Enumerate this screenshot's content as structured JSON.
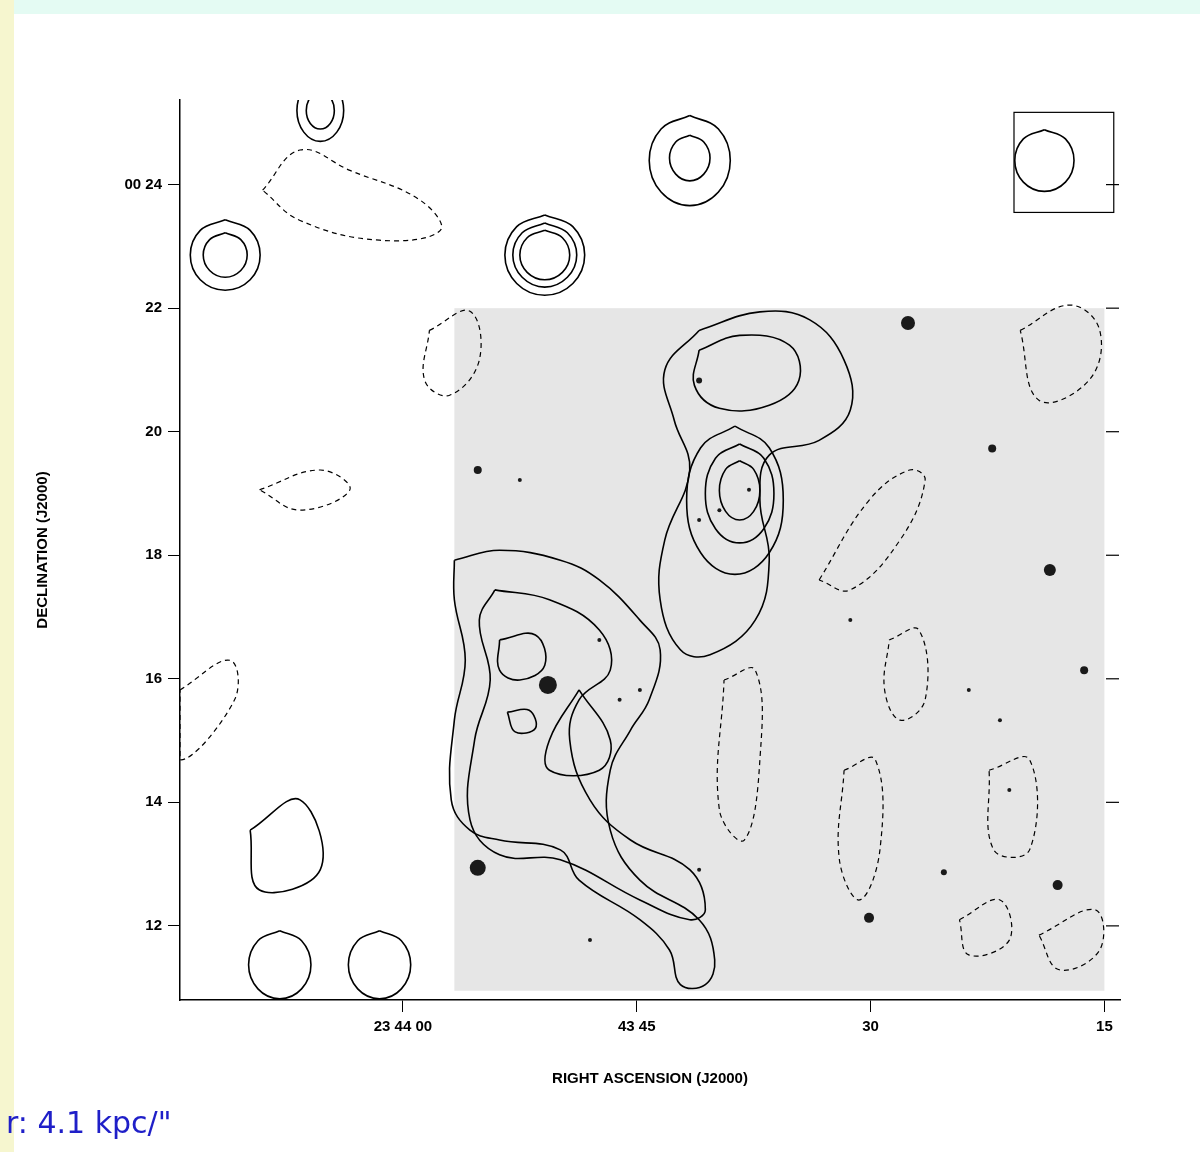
{
  "chart_data": {
    "type": "contour",
    "x_label": "RIGHT ASCENSION (J2000)",
    "y_label": "DECLINATION (J2000)",
    "annotation": "r: 4.1 kpc/\"",
    "xlim": [
      74.3,
      14.0
    ],
    "ylim": [
      10.8,
      25.37
    ],
    "xticks": [
      {
        "value": 60,
        "label": "23 44 00"
      },
      {
        "value": 45,
        "label": "43 45"
      },
      30,
      15
    ],
    "yticks": [
      {
        "value": 24,
        "label": "00 24"
      },
      22,
      20,
      18,
      16,
      14,
      12
    ],
    "grid": false,
    "color": "#000000",
    "optical_image": {
      "x": [
        56.7,
        15.0
      ],
      "y": [
        22.0,
        10.95
      ],
      "color": "#e6e6e6"
    },
    "beam_box": {
      "x": [
        20.8,
        14.4
      ],
      "y": [
        25.17,
        23.55
      ]
    },
    "stars": {
      "x": [
        50.7,
        55.2,
        27.6,
        18.5,
        30.1,
        18.0,
        55.2,
        22.2,
        16.3,
        41.0,
        25.3,
        47.4,
        46.1,
        37.8,
        39.7,
        41.0,
        44.8,
        23.7,
        21.7,
        48.0,
        52.5,
        41.0,
        31.3,
        21.1
      ],
      "y": [
        15.9,
        12.94,
        21.76,
        17.76,
        12.13,
        12.66,
        19.38,
        19.73,
        16.14,
        20.83,
        12.87,
        16.63,
        15.66,
        19.06,
        18.73,
        18.57,
        15.82,
        15.82,
        15.33,
        11.77,
        19.22,
        12.91,
        16.95,
        14.2
      ],
      "size": [
        9,
        8,
        7,
        6,
        5,
        5,
        4,
        4,
        4,
        3,
        3,
        2,
        2,
        2,
        2,
        2,
        2,
        2,
        2,
        2,
        2,
        2,
        2,
        2
      ]
    },
    "contours": [
      {
        "line_style": "solid",
        "x": [
          41.0,
          37.1,
          33.9,
          31.7,
          31.3,
          33.3,
          36.5,
          37.1,
          36.5,
          37.4,
          40.3,
          42.2,
          43.5,
          43.2,
          41.6,
          42.6,
          43.2
        ],
        "y": [
          21.64,
          21.94,
          21.81,
          21.16,
          20.35,
          19.86,
          19.62,
          18.89,
          17.92,
          16.95,
          16.39,
          16.47,
          17.28,
          18.25,
          19.38,
          20.19,
          21.0
        ]
      },
      {
        "line_style": "solid",
        "x": [
          41.0,
          38.4,
          35.2,
          34.6,
          36.5,
          39.7,
          41.3
        ],
        "y": [
          21.32,
          21.56,
          21.4,
          20.83,
          20.43,
          20.38,
          20.75
        ]
      },
      {
        "line_style": "solid",
        "x": [
          38.7,
          36.5,
          35.6,
          36.5,
          38.7,
          40.9,
          41.8,
          40.9
        ],
        "y": [
          20.09,
          19.74,
          18.89,
          18.04,
          17.69,
          18.04,
          18.89,
          19.74
        ]
      },
      {
        "line_style": "solid",
        "x": [
          38.4,
          36.85,
          36.2,
          36.85,
          38.4,
          39.95,
          40.6,
          39.95
        ],
        "y": [
          19.8,
          19.57,
          19.0,
          18.43,
          18.2,
          18.43,
          19.0,
          19.57
        ]
      },
      {
        "line_style": "solid",
        "x": [
          38.4,
          37.5,
          37.1,
          37.5,
          38.4,
          39.3,
          39.7,
          39.3
        ],
        "y": [
          19.53,
          19.39,
          19.05,
          18.71,
          18.57,
          18.71,
          19.05,
          19.39
        ]
      },
      {
        "line_style": "solid",
        "x": [
          56.7,
          53.8,
          49.9,
          47.4,
          44.8,
          43.5,
          44.2,
          45.4,
          46.7,
          46.7,
          44.8,
          41.0,
          40.0,
          40.6,
          42.2,
          42.9,
          44.8,
          48.7,
          49.9,
          53.8,
          55.7,
          56.9,
          56.7,
          56.0,
          56.7
        ],
        "y": [
          17.92,
          18.08,
          17.92,
          17.6,
          16.95,
          16.47,
          15.66,
          15.17,
          14.52,
          13.55,
          12.74,
          12.1,
          11.45,
          11.05,
          11.05,
          11.61,
          12.1,
          12.74,
          13.23,
          13.39,
          13.55,
          14.04,
          15.33,
          16.3,
          17.28
        ]
      },
      {
        "line_style": "solid",
        "x": [
          54.1,
          50.6,
          47.4,
          46.7,
          48.7,
          49.3,
          48.0,
          45.4,
          41.6,
          40.6,
          41.6,
          44.8,
          49.9,
          53.8,
          55.7,
          55.4,
          54.4,
          55.1
        ],
        "y": [
          17.44,
          17.28,
          16.79,
          16.14,
          15.66,
          15.01,
          14.04,
          13.39,
          12.91,
          12.26,
          12.1,
          12.42,
          13.07,
          13.15,
          13.72,
          15.01,
          15.98,
          16.95
        ]
      },
      {
        "line_style": "solid",
        "x": [
          53.8,
          51.5,
          50.9,
          52.5,
          53.8
        ],
        "y": [
          16.63,
          16.71,
          16.22,
          15.98,
          16.14
        ]
      },
      {
        "line_style": "solid",
        "x": [
          53.3,
          51.9,
          51.5,
          52.8
        ],
        "y": [
          15.46,
          15.49,
          15.2,
          15.14
        ]
      },
      {
        "line_style": "solid",
        "x": [
          48.7,
          46.7,
          47.4,
          50.6,
          50.6
        ],
        "y": [
          15.82,
          15.01,
          14.52,
          14.52,
          15.01
        ]
      },
      {
        "line_style": "solid",
        "x": [
          71.4,
          69.8,
          69.16,
          69.8,
          71.4,
          73.0,
          73.64,
          73.0
        ],
        "y": [
          23.43,
          23.26,
          22.86,
          22.46,
          22.29,
          22.46,
          22.86,
          23.26
        ]
      },
      {
        "line_style": "solid",
        "x": [
          71.4,
          70.4,
          69.99,
          70.4,
          71.4,
          72.4,
          72.81,
          72.4
        ],
        "y": [
          23.22,
          23.11,
          22.86,
          22.61,
          22.5,
          22.61,
          22.86,
          23.11
        ]
      },
      {
        "line_style": "solid",
        "x": [
          50.9,
          49.1,
          48.34,
          49.1,
          50.9,
          52.7,
          53.46,
          52.7
        ],
        "y": [
          23.51,
          23.32,
          22.86,
          22.4,
          22.21,
          22.4,
          22.86,
          23.32
        ]
      },
      {
        "line_style": "solid",
        "x": [
          50.9,
          49.45,
          48.85,
          49.45,
          50.9,
          52.35,
          52.95,
          52.35
        ],
        "y": [
          23.38,
          23.22,
          22.86,
          22.5,
          22.34,
          22.5,
          22.86,
          23.22
        ]
      },
      {
        "line_style": "solid",
        "x": [
          50.9,
          49.77,
          49.3,
          49.77,
          50.9,
          52.03,
          52.5,
          52.03
        ],
        "y": [
          23.26,
          23.14,
          22.86,
          22.58,
          22.46,
          22.58,
          22.86,
          23.14
        ]
      },
      {
        "line_style": "solid",
        "x": [
          41.6,
          39.76,
          39.0,
          39.76,
          41.6,
          43.44,
          44.2,
          43.44
        ],
        "y": [
          25.12,
          24.9,
          24.39,
          23.88,
          23.66,
          23.88,
          24.39,
          24.9
        ]
      },
      {
        "line_style": "solid",
        "x": [
          41.6,
          40.7,
          40.3,
          40.7,
          41.6,
          42.5,
          42.9,
          42.5
        ],
        "y": [
          24.8,
          24.69,
          24.43,
          24.17,
          24.06,
          24.17,
          24.43,
          24.69
        ]
      },
      {
        "line_style": "solid",
        "x": [
          65.3,
          64.24,
          63.8,
          64.24,
          65.3,
          66.36,
          66.8,
          66.36
        ],
        "y": [
          25.7,
          25.55,
          25.2,
          24.85,
          24.7,
          24.85,
          25.2,
          25.55
        ]
      },
      {
        "line_style": "solid",
        "x": [
          65.3,
          64.66,
          64.4,
          64.66,
          65.3,
          65.94,
          66.2,
          65.94
        ],
        "y": [
          25.5,
          25.41,
          25.2,
          24.99,
          24.9,
          24.99,
          25.2,
          25.41
        ]
      },
      {
        "line_style": "solid",
        "x": [
          18.85,
          17.5,
          16.95,
          17.5,
          18.85,
          20.2,
          20.75,
          20.2
        ],
        "y": [
          24.89,
          24.74,
          24.39,
          24.04,
          23.89,
          24.04,
          24.39,
          24.74
        ]
      },
      {
        "line_style": "solid",
        "x": [
          67.9,
          66.5,
          65.9,
          66.5,
          67.9,
          69.3,
          69.9,
          69.3
        ],
        "y": [
          11.92,
          11.76,
          11.37,
          10.98,
          10.82,
          10.98,
          11.37,
          11.76
        ]
      },
      {
        "line_style": "solid",
        "x": [
          61.5,
          60.1,
          59.5,
          60.1,
          61.5,
          62.9,
          63.5,
          62.9
        ],
        "y": [
          11.92,
          11.76,
          11.37,
          10.98,
          10.82,
          10.98,
          11.37,
          11.76
        ]
      },
      {
        "line_style": "solid",
        "x": [
          69.8,
          66.6,
          65.3,
          69.2
        ],
        "y": [
          13.55,
          14.04,
          12.91,
          12.58
        ]
      },
      {
        "line_style": "dashed",
        "x": [
          69.0,
          66.6,
          63.4,
          58.9,
          57.6,
          61.5,
          66.6
        ],
        "y": [
          23.91,
          24.56,
          24.23,
          23.75,
          23.26,
          23.1,
          23.42
        ]
      },
      {
        "line_style": "dashed",
        "x": [
          58.3,
          55.7,
          55.1,
          57.0,
          58.6
        ],
        "y": [
          21.64,
          21.95,
          21.16,
          20.59,
          20.83
        ]
      },
      {
        "line_style": "dashed",
        "x": [
          33.3,
          30.1,
          27.5,
          26.5,
          28.1,
          31.3
        ],
        "y": [
          17.6,
          18.89,
          19.38,
          19.22,
          18.25,
          17.44
        ]
      },
      {
        "line_style": "dashed",
        "x": [
          20.4,
          17.2,
          15.3,
          16.0,
          19.2
        ],
        "y": [
          21.64,
          22.05,
          21.64,
          20.83,
          20.51
        ]
      },
      {
        "line_style": "dashed",
        "x": [
          39.4,
          37.4,
          37.1,
          38.1,
          39.7
        ],
        "y": [
          15.98,
          16.14,
          14.69,
          13.39,
          13.88
        ]
      },
      {
        "line_style": "dashed",
        "x": [
          31.7,
          29.7,
          29.4,
          30.7,
          32.0
        ],
        "y": [
          14.52,
          14.69,
          13.23,
          12.42,
          13.07
        ]
      },
      {
        "line_style": "dashed",
        "x": [
          28.8,
          26.9,
          26.5,
          28.1,
          29.1
        ],
        "y": [
          16.63,
          16.79,
          15.66,
          15.33,
          15.82
        ]
      },
      {
        "line_style": "dashed",
        "x": [
          22.4,
          19.8,
          19.8,
          22.1
        ],
        "y": [
          14.52,
          14.69,
          13.23,
          13.23
        ]
      },
      {
        "line_style": "dashed",
        "x": [
          24.3,
          21.7,
          21.1,
          23.7
        ],
        "y": [
          12.1,
          12.42,
          11.77,
          11.53
        ]
      },
      {
        "line_style": "dashed",
        "x": [
          19.2,
          15.6,
          15.3,
          17.9
        ],
        "y": [
          11.85,
          12.26,
          11.61,
          11.29
        ]
      },
      {
        "line_style": "dashed",
        "x": [
          74.3,
          71.1,
          70.8,
          74.3
        ],
        "y": [
          15.82,
          16.3,
          15.66,
          14.69
        ]
      },
      {
        "line_style": "dashed",
        "x": [
          69.2,
          65.3,
          63.4,
          66.6
        ],
        "y": [
          19.06,
          19.38,
          19.06,
          18.73
        ]
      }
    ]
  }
}
